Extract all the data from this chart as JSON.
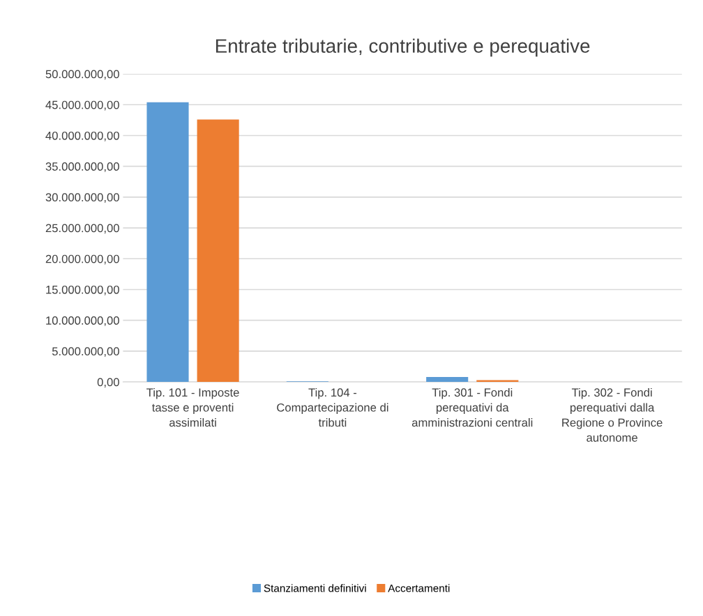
{
  "chart_data": {
    "type": "bar",
    "title": "Entrate tributarie, contributive e perequative",
    "categories": [
      "Tip. 101 - Imposte tasse e proventi assimilati",
      "Tip. 104 - Compartecipazione di tributi",
      "Tip. 301 - Fondi perequativi da amministrazioni centrali",
      "Tip. 302 - Fondi perequativi dalla Regione o Province autonome"
    ],
    "series": [
      {
        "name": "Stanziamenti definitivi",
        "color": "#5b9bd5",
        "values": [
          45400000,
          100000,
          800000,
          0
        ]
      },
      {
        "name": "Accertamenti",
        "color": "#ed7d31",
        "values": [
          42600000,
          0,
          300000,
          0
        ]
      }
    ],
    "ylim": [
      0,
      50000000
    ],
    "yticks": [
      {
        "value": 0,
        "label": "0,00"
      },
      {
        "value": 5000000,
        "label": "5.000.000,00"
      },
      {
        "value": 10000000,
        "label": "10.000.000,00"
      },
      {
        "value": 15000000,
        "label": "15.000.000,00"
      },
      {
        "value": 20000000,
        "label": "20.000.000,00"
      },
      {
        "value": 25000000,
        "label": "25.000.000,00"
      },
      {
        "value": 30000000,
        "label": "30.000.000,00"
      },
      {
        "value": 35000000,
        "label": "35.000.000,00"
      },
      {
        "value": 40000000,
        "label": "40.000.000,00"
      },
      {
        "value": 45000000,
        "label": "45.000.000,00"
      },
      {
        "value": 50000000,
        "label": "50.000.000,00"
      }
    ],
    "grid": "y",
    "legend": "bottom"
  }
}
